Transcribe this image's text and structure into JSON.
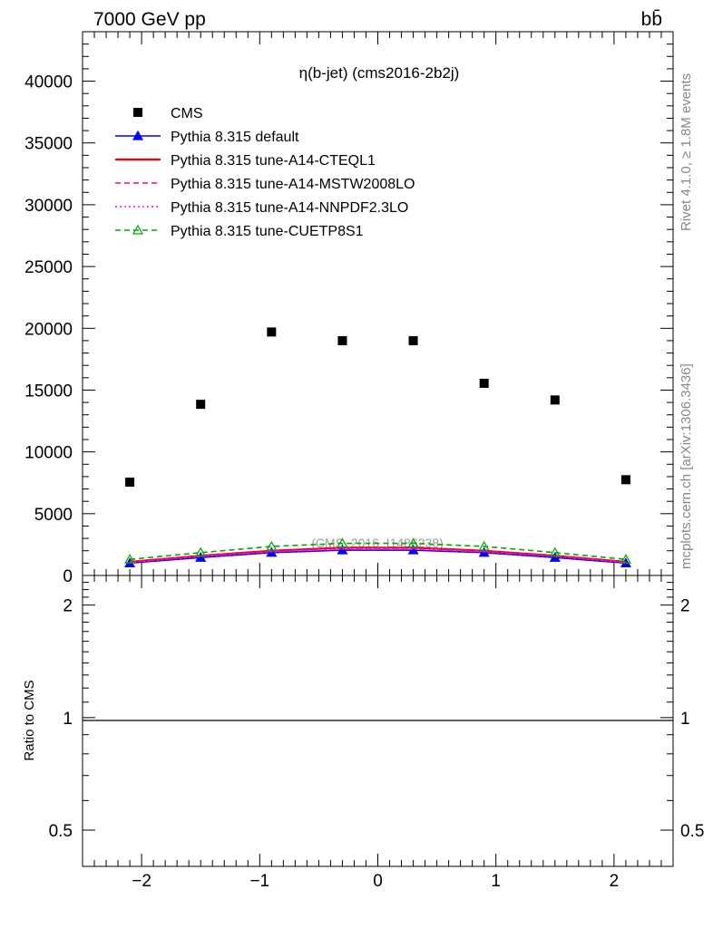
{
  "header": {
    "left": "7000 GeV pp",
    "right": "bb̄"
  },
  "side_labels": {
    "rivet": "Rivet 4.1.0, ≥ 1.8M events",
    "mcplots": "mcplots.cern.ch [arXiv:1306.3436]"
  },
  "chart_data": {
    "type": "scatter",
    "title": "η(b-jet) (cms2016-2b2j)",
    "watermark": "(CMS_2016_I1486238)",
    "xlabel": "",
    "ylabel": "",
    "xlim": [
      -2.5,
      2.5
    ],
    "ylim": [
      0,
      44000
    ],
    "x_ticks": [
      "−2",
      "−1",
      "0",
      "1",
      "2"
    ],
    "y_ticks": [
      "0",
      "5000",
      "10000",
      "15000",
      "20000",
      "25000",
      "30000",
      "35000",
      "40000"
    ],
    "x": [
      -2.1,
      -1.5,
      -0.9,
      -0.3,
      0.3,
      0.9,
      1.5,
      2.1
    ],
    "series": [
      {
        "name": "CMS",
        "color": "#000000",
        "style": "marker-square",
        "values": [
          7550,
          13850,
          19700,
          19000,
          19000,
          15550,
          14200,
          7750
        ]
      },
      {
        "name": "Pythia 8.315 default",
        "color": "#0000ff",
        "style": "line-triangle",
        "values": [
          1000,
          1450,
          1850,
          2050,
          2050,
          1850,
          1450,
          1000
        ]
      },
      {
        "name": "Pythia 8.315 tune-A14-CTEQL1",
        "color": "#ff0000",
        "style": "solid",
        "values": [
          1100,
          1600,
          2000,
          2250,
          2250,
          2000,
          1600,
          1100
        ]
      },
      {
        "name": "Pythia 8.315 tune-A14-MSTW2008LO",
        "color": "#ff0080",
        "style": "dashed",
        "values": [
          1080,
          1580,
          1980,
          2200,
          2200,
          1980,
          1580,
          1080
        ]
      },
      {
        "name": "Pythia 8.315 tune-A14-NNPDF2.3LO",
        "color": "#ff00ff",
        "style": "dotted",
        "values": [
          1050,
          1520,
          1900,
          2120,
          2120,
          1900,
          1520,
          1050
        ]
      },
      {
        "name": "Pythia 8.315 tune-CUETP8S1",
        "color": "#00aa00",
        "style": "dashed-open-triangle",
        "values": [
          1300,
          1850,
          2350,
          2600,
          2600,
          2350,
          1850,
          1300
        ]
      }
    ],
    "ratio_panel": {
      "ylabel": "Ratio to CMS",
      "ylim": [
        0.4,
        2.4
      ],
      "y_ticks": [
        "0.5",
        "1",
        "2"
      ],
      "reference": 1
    }
  }
}
